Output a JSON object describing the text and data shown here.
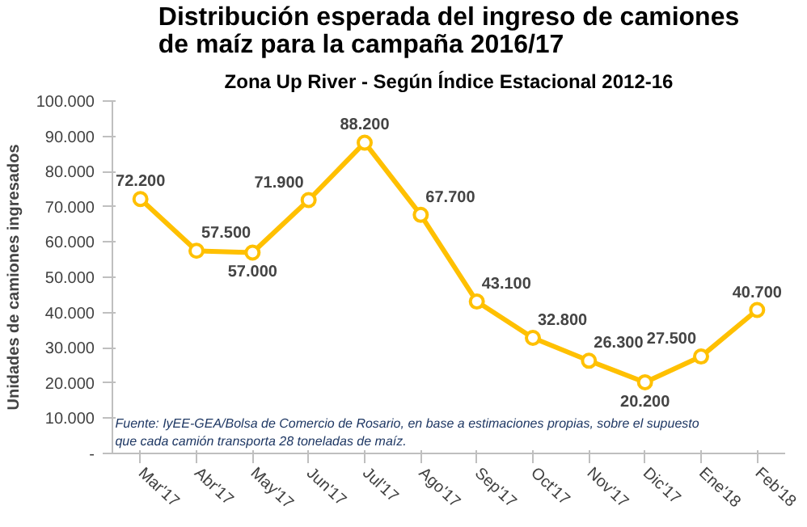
{
  "chart_data": {
    "type": "line",
    "title": "Distribución esperada del ingreso de camiones\nde maíz para la campaña 2016/17",
    "subtitle": "Zona Up River - Según Índice Estacional 2012-16",
    "ylabel": "Unidades de camiones ingresados",
    "categories": [
      "Mar'17",
      "Abr'17",
      "May'17",
      "Jun'17",
      "Jul'17",
      "Ago'17",
      "Sep'17",
      "Oct'17",
      "Nov'17",
      "Dic'17",
      "Ene'18",
      "Feb'18"
    ],
    "series": [
      {
        "color": "#ffc000",
        "values": [
          72200,
          57500,
          57000,
          71900,
          88200,
          67700,
          43100,
          32800,
          26300,
          20200,
          27500,
          40700
        ],
        "value_labels": [
          "72.200",
          "57.500",
          "57.000",
          "71.900",
          "88.200",
          "67.700",
          "43.100",
          "32.800",
          "26.300",
          "20.200",
          "27.500",
          "40.700"
        ]
      }
    ],
    "ylim": [
      0,
      100000
    ],
    "yticks": [
      {
        "value": 0,
        "label": "-"
      },
      {
        "value": 10000,
        "label": "10.000"
      },
      {
        "value": 20000,
        "label": "20.000"
      },
      {
        "value": 30000,
        "label": "30.000"
      },
      {
        "value": 40000,
        "label": "40.000"
      },
      {
        "value": 50000,
        "label": "50.000"
      },
      {
        "value": 60000,
        "label": "60.000"
      },
      {
        "value": 70000,
        "label": "70.000"
      },
      {
        "value": 80000,
        "label": "80.000"
      },
      {
        "value": 90000,
        "label": "90.000"
      },
      {
        "value": 100000,
        "label": "100.000"
      }
    ],
    "grid": false,
    "marker": "circle",
    "line_style": "solid",
    "annotations": [
      "Fuente: IyEE-GEA/Bolsa de Comercio de Rosario, en base a estimaciones propias, sobre el supuesto\nque cada camión transporta  28 toneladas de maíz."
    ]
  }
}
